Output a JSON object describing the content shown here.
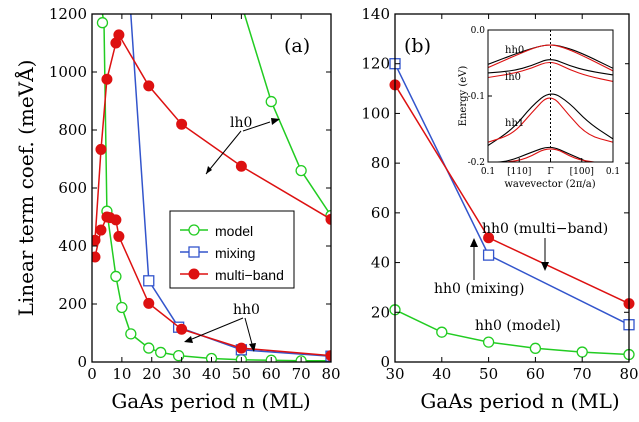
{
  "colors": {
    "model": "#22cc22",
    "mixing": "#3355cc",
    "multiband": "#dd1111",
    "inset_black": "#000000",
    "inset_red": "#dd1111"
  },
  "chart_data": [
    {
      "type": "line",
      "panel_label": "(a)",
      "xlabel": "GaAs period n (ML)",
      "ylabel": "Linear term coef. (meVÅ)",
      "xlim": [
        0,
        80
      ],
      "ylim": [
        0,
        1200
      ],
      "xticks": [
        "0",
        "10",
        "20",
        "30",
        "40",
        "50",
        "60",
        "70",
        "80"
      ],
      "yticks": [
        "0",
        "200",
        "400",
        "600",
        "800",
        "1000",
        "1200"
      ],
      "legend": {
        "placement": "center-right",
        "entries": [
          "model",
          "mixing",
          "multi−band"
        ]
      },
      "series": [
        {
          "name": "model",
          "key": "model",
          "marker": "open-circle",
          "markers": [
            [
              5,
              520
            ],
            [
              8,
              295
            ],
            [
              10,
              188
            ],
            [
              13,
              97
            ],
            [
              19,
              48
            ],
            [
              23,
              33
            ],
            [
              29,
              22
            ],
            [
              40,
              12
            ],
            [
              50,
              8
            ],
            [
              60,
              6
            ],
            [
              70,
              4
            ],
            [
              80,
              4
            ]
          ],
          "curves": [
            [
              [
                3.5,
                1200
              ],
              [
                4,
                1170
              ],
              [
                5,
                520
              ],
              [
                8,
                295
              ],
              [
                10,
                188
              ],
              [
                13,
                97
              ],
              [
                19,
                48
              ],
              [
                23,
                33
              ],
              [
                29,
                22
              ],
              [
                40,
                12
              ],
              [
                50,
                8
              ],
              [
                60,
                6
              ],
              [
                70,
                4
              ],
              [
                80,
                4
              ]
            ],
            [
              [
                51,
                1200
              ],
              [
                60,
                898
              ],
              [
                70,
                660
              ],
              [
                80,
                505
              ]
            ]
          ],
          "extra_markers": [
            [
              3.5,
              1170
            ],
            [
              60,
              898
            ],
            [
              70,
              660
            ],
            [
              80,
              505
            ]
          ]
        },
        {
          "name": "mixing",
          "key": "mixing",
          "marker": "open-square",
          "markers": [
            [
              19,
              280
            ],
            [
              29,
              120
            ],
            [
              50,
              42
            ],
            [
              80,
              20
            ]
          ],
          "curves": [
            [
              [
                13,
                1200
              ],
              [
                19,
                280
              ],
              [
                29,
                120
              ],
              [
                50,
                42
              ],
              [
                80,
                20
              ]
            ]
          ]
        },
        {
          "name": "multi−band",
          "key": "multiband",
          "marker": "filled-circle",
          "markers": [
            [
              1,
              362
            ],
            [
              1,
              420
            ],
            [
              3,
              455
            ],
            [
              3,
              733
            ],
            [
              5,
              975
            ],
            [
              5,
              500
            ],
            [
              6,
              498
            ],
            [
              8,
              490
            ],
            [
              8,
              1100
            ],
            [
              9,
              1128
            ],
            [
              9,
              433
            ],
            [
              19,
              952
            ],
            [
              30,
              820
            ],
            [
              50,
              675
            ],
            [
              80,
              492
            ],
            [
              19,
              202
            ],
            [
              30,
              113
            ],
            [
              50,
              48
            ],
            [
              80,
              22
            ]
          ],
          "curves": [
            [
              [
                1,
                420
              ],
              [
                3,
                733
              ],
              [
                5,
                975
              ],
              [
                8,
                1100
              ],
              [
                9,
                1128
              ],
              [
                19,
                952
              ],
              [
                30,
                820
              ],
              [
                50,
                675
              ],
              [
                80,
                492
              ]
            ],
            [
              [
                1,
                362
              ],
              [
                3,
                455
              ],
              [
                5,
                500
              ],
              [
                6,
                498
              ],
              [
                8,
                490
              ],
              [
                9,
                433
              ],
              [
                19,
                202
              ],
              [
                30,
                113
              ],
              [
                50,
                48
              ],
              [
                80,
                22
              ]
            ]
          ]
        }
      ],
      "annotations": [
        {
          "text": "lh0"
        },
        {
          "text": "hh0"
        }
      ]
    },
    {
      "type": "line",
      "panel_label": "(b)",
      "xlabel": "GaAs period n (ML)",
      "ylabel": "",
      "xlim": [
        30,
        80
      ],
      "ylim": [
        0,
        140
      ],
      "xticks": [
        "30",
        "40",
        "50",
        "60",
        "70",
        "80"
      ],
      "yticks": [
        "0",
        "20",
        "40",
        "60",
        "80",
        "100",
        "120",
        "140"
      ],
      "series": [
        {
          "name": "model",
          "key": "model",
          "marker": "open-circle",
          "points": [
            [
              30,
              21
            ],
            [
              40,
              12
            ],
            [
              50,
              8
            ],
            [
              60,
              5.5
            ],
            [
              70,
              4
            ],
            [
              80,
              3
            ]
          ]
        },
        {
          "name": "mixing",
          "key": "mixing",
          "marker": "open-square",
          "points": [
            [
              30,
              120
            ],
            [
              50,
              43
            ],
            [
              80,
              15
            ]
          ]
        },
        {
          "name": "multi−band",
          "key": "multiband",
          "marker": "filled-circle",
          "points": [
            [
              30,
              111.5
            ],
            [
              50,
              50
            ],
            [
              80,
              23.5
            ]
          ]
        }
      ],
      "annotations": [
        {
          "text": "hh0 (multi−band)"
        },
        {
          "text": "hh0 (mixing)"
        },
        {
          "text": "hh0 (model)"
        }
      ]
    },
    {
      "type": "line",
      "inset": true,
      "xlabel": "wavevector (2π/a)",
      "ylabel": "Energy (eV)",
      "ylim": [
        -0.2,
        0
      ],
      "xlim": [
        -0.1,
        0.1
      ],
      "xticks": [
        "0.1",
        "[110]",
        "Γ",
        "[100]",
        "0.1"
      ],
      "yticks": [
        "0.0",
        "-0.1",
        "-0.2"
      ],
      "band_labels": [
        "hh0",
        "lh0",
        "hh1"
      ],
      "series": [
        {
          "color_key": "inset_black",
          "points": [
            [
              -0.1,
              -0.052
            ],
            [
              -0.05,
              -0.034
            ],
            [
              -0.02,
              -0.025
            ],
            [
              0,
              -0.022
            ],
            [
              0.02,
              -0.025
            ],
            [
              0.05,
              -0.035
            ],
            [
              0.1,
              -0.058
            ]
          ]
        },
        {
          "color_key": "inset_red",
          "points": [
            [
              -0.1,
              -0.057
            ],
            [
              -0.05,
              -0.036
            ],
            [
              -0.02,
              -0.025
            ],
            [
              0,
              -0.022
            ],
            [
              0.02,
              -0.026
            ],
            [
              0.05,
              -0.038
            ],
            [
              0.1,
              -0.062
            ]
          ]
        },
        {
          "color_key": "inset_black",
          "points": [
            [
              -0.1,
              -0.065
            ],
            [
              -0.06,
              -0.062
            ],
            [
              -0.03,
              -0.054
            ],
            [
              0,
              -0.042
            ],
            [
              0.03,
              -0.054
            ],
            [
              0.06,
              -0.062
            ],
            [
              0.1,
              -0.068
            ]
          ]
        },
        {
          "color_key": "inset_red",
          "points": [
            [
              -0.1,
              -0.072
            ],
            [
              -0.06,
              -0.066
            ],
            [
              -0.03,
              -0.058
            ],
            [
              0,
              -0.046
            ],
            [
              0.03,
              -0.06
            ],
            [
              0.06,
              -0.07
            ],
            [
              0.1,
              -0.078
            ]
          ]
        },
        {
          "color_key": "inset_black",
          "points": [
            [
              -0.1,
              -0.175
            ],
            [
              -0.06,
              -0.15
            ],
            [
              -0.03,
              -0.115
            ],
            [
              0,
              -0.092
            ],
            [
              0.03,
              -0.11
            ],
            [
              0.06,
              -0.14
            ],
            [
              0.1,
              -0.165
            ]
          ]
        },
        {
          "color_key": "inset_red",
          "points": [
            [
              -0.1,
              -0.17
            ],
            [
              -0.06,
              -0.158
            ],
            [
              -0.03,
              -0.125
            ],
            [
              0,
              -0.095
            ],
            [
              0.03,
              -0.13
            ],
            [
              0.06,
              -0.16
            ],
            [
              0.1,
              -0.17
            ]
          ]
        },
        {
          "color_key": "inset_black",
          "points": [
            [
              -0.1,
              -0.2
            ],
            [
              -0.07,
              -0.2
            ],
            [
              -0.03,
              -0.185
            ],
            [
              0,
              -0.175
            ],
            [
              0.03,
              -0.188
            ],
            [
              0.06,
              -0.2
            ]
          ]
        },
        {
          "color_key": "inset_red",
          "points": [
            [
              -0.07,
              -0.2
            ],
            [
              -0.04,
              -0.196
            ],
            [
              0,
              -0.175
            ],
            [
              0.04,
              -0.196
            ],
            [
              0.07,
              -0.2
            ]
          ]
        }
      ]
    }
  ]
}
